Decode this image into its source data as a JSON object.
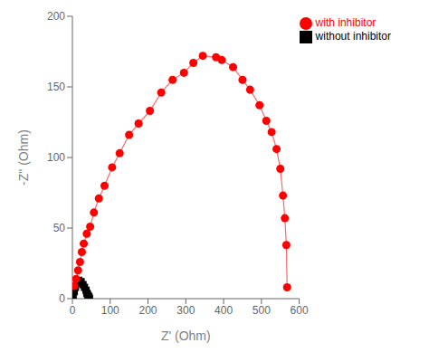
{
  "chart_data": {
    "type": "line",
    "xlabel": "Z' (Ohm)",
    "ylabel": "-Z\" (Ohm)",
    "xlim": [
      0,
      600
    ],
    "ylim": [
      0,
      200
    ],
    "xticks": [
      0,
      100,
      200,
      300,
      400,
      500,
      600
    ],
    "yticks": [
      0,
      50,
      100,
      150,
      200
    ],
    "grid": false,
    "legend": "upper right",
    "series": [
      {
        "name": "without inhibitor",
        "color": "#000000",
        "marker": "square",
        "line_style": "solid",
        "x": [
          2,
          5,
          8,
          12,
          17,
          23,
          28,
          32,
          36,
          38,
          40,
          42,
          43,
          44,
          45
        ],
        "values": [
          2,
          5,
          8,
          11,
          13,
          12,
          10,
          8,
          6,
          4,
          3,
          2,
          1,
          1,
          0
        ]
      },
      {
        "name": "with inhibitor",
        "color": "#ff0000",
        "marker": "circle",
        "line_style": "solid",
        "x": [
          5,
          10,
          15,
          20,
          25,
          30,
          38,
          47,
          57,
          70,
          85,
          105,
          125,
          150,
          175,
          205,
          235,
          265,
          295,
          320,
          345,
          380,
          395,
          425,
          450,
          470,
          495,
          513,
          527,
          540,
          550,
          557,
          562,
          566,
          568
        ],
        "values": [
          9,
          14,
          20,
          26,
          33,
          39,
          46,
          51,
          61,
          71,
          80,
          93,
          103,
          116,
          124,
          133,
          146,
          155,
          160,
          167,
          172,
          171,
          169,
          164,
          155,
          148,
          137,
          126,
          118,
          106,
          92,
          73,
          57,
          38,
          8
        ]
      }
    ]
  }
}
